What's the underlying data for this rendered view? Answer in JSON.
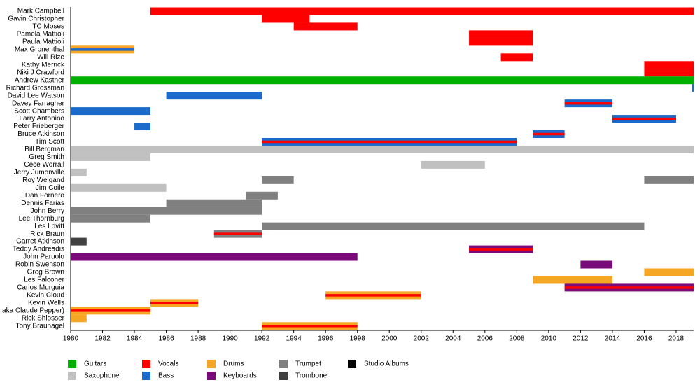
{
  "chart_data": {
    "type": "timeline",
    "xlim": [
      1980,
      2019.1
    ],
    "xticks": [
      1980,
      1982,
      1984,
      1986,
      1988,
      1990,
      1992,
      1994,
      1996,
      1998,
      2000,
      2002,
      2004,
      2006,
      2008,
      2010,
      2012,
      2014,
      2016,
      2018
    ],
    "roles": [
      {
        "name": "Guitars",
        "color": "#00b000"
      },
      {
        "name": "Saxophone",
        "color": "#c0c0c0"
      },
      {
        "name": "Vocals",
        "color": "#ff0000"
      },
      {
        "name": "Bass",
        "color": "#1a6bcc"
      },
      {
        "name": "Drums",
        "color": "#f5a623"
      },
      {
        "name": "Keyboards",
        "color": "#7b0a7b"
      },
      {
        "name": "Trumpet",
        "color": "#808080"
      },
      {
        "name": "Trombone",
        "color": "#404040"
      },
      {
        "name": "Studio Albums",
        "color": "#000000"
      }
    ],
    "members": [
      {
        "name": "Mark Campbell",
        "periods": [
          {
            "start": 1985,
            "end": 2019.1,
            "role": "Vocals"
          }
        ]
      },
      {
        "name": "Gavin Christopher",
        "periods": [
          {
            "start": 1992,
            "end": 1995,
            "role": "Vocals"
          }
        ]
      },
      {
        "name": "TC Moses",
        "periods": [
          {
            "start": 1994,
            "end": 1998,
            "role": "Vocals"
          }
        ]
      },
      {
        "name": "Pamela Mattioli",
        "periods": [
          {
            "start": 2005,
            "end": 2009,
            "role": "Vocals"
          }
        ]
      },
      {
        "name": "Paula Mattioli",
        "periods": [
          {
            "start": 2005,
            "end": 2009,
            "role": "Vocals"
          }
        ]
      },
      {
        "name": "Max Gronenthal",
        "periods": [
          {
            "start": 1980,
            "end": 1984,
            "role": "Drums",
            "with": "Bass"
          }
        ]
      },
      {
        "name": "Will Rize",
        "periods": [
          {
            "start": 2007,
            "end": 2009,
            "role": "Vocals"
          }
        ]
      },
      {
        "name": "Kathy Merrick",
        "periods": [
          {
            "start": 2016,
            "end": 2019.1,
            "role": "Vocals"
          }
        ]
      },
      {
        "name": "Niki J Crawford",
        "periods": [
          {
            "start": 2016,
            "end": 2019.1,
            "role": "Vocals"
          }
        ]
      },
      {
        "name": "Andrew Kastner",
        "periods": [
          {
            "start": 1980,
            "end": 2019.1,
            "role": "Guitars"
          }
        ]
      },
      {
        "name": "Richard Grossman",
        "periods": [
          {
            "start": 2019,
            "end": 2019.1,
            "role": "Bass"
          }
        ]
      },
      {
        "name": "David Lee Watson",
        "periods": [
          {
            "start": 1986,
            "end": 1992,
            "role": "Bass"
          }
        ]
      },
      {
        "name": "Davey Farragher",
        "periods": [
          {
            "start": 2011,
            "end": 2014,
            "role": "Bass",
            "with": "Vocals"
          }
        ]
      },
      {
        "name": "Scott Chambers",
        "periods": [
          {
            "start": 1980,
            "end": 1985,
            "role": "Bass"
          }
        ]
      },
      {
        "name": "Larry Antonino",
        "periods": [
          {
            "start": 2014,
            "end": 2018,
            "role": "Bass",
            "with": "Vocals"
          }
        ]
      },
      {
        "name": "Peter Frieberger",
        "periods": [
          {
            "start": 1984,
            "end": 1985,
            "role": "Bass"
          }
        ]
      },
      {
        "name": "Bruce Atkinson",
        "periods": [
          {
            "start": 2009,
            "end": 2011,
            "role": "Bass",
            "with": "Vocals"
          }
        ]
      },
      {
        "name": "Tim Scott",
        "periods": [
          {
            "start": 1992,
            "end": 2008,
            "role": "Bass",
            "with": "Vocals"
          }
        ]
      },
      {
        "name": "Bill Bergman",
        "periods": [
          {
            "start": 1980,
            "end": 2019.1,
            "role": "Saxophone"
          }
        ]
      },
      {
        "name": "Greg Smith",
        "periods": [
          {
            "start": 1980,
            "end": 1985,
            "role": "Saxophone"
          }
        ]
      },
      {
        "name": "Cece Worrall",
        "periods": [
          {
            "start": 2002,
            "end": 2006,
            "role": "Saxophone"
          }
        ]
      },
      {
        "name": "Jerry Jumonville",
        "periods": [
          {
            "start": 1980,
            "end": 1981,
            "role": "Saxophone"
          }
        ]
      },
      {
        "name": "Roy Weigand",
        "periods": [
          {
            "start": 1992,
            "end": 1994,
            "role": "Trumpet"
          },
          {
            "start": 2016,
            "end": 2019.1,
            "role": "Trumpet"
          }
        ]
      },
      {
        "name": "Jim Coile",
        "periods": [
          {
            "start": 1980,
            "end": 1986,
            "role": "Saxophone"
          }
        ]
      },
      {
        "name": "Dan Fornero",
        "periods": [
          {
            "start": 1991,
            "end": 1993,
            "role": "Trumpet"
          }
        ]
      },
      {
        "name": "Dennis Farias",
        "periods": [
          {
            "start": 1986,
            "end": 1992,
            "role": "Trumpet"
          }
        ]
      },
      {
        "name": "John Berry",
        "periods": [
          {
            "start": 1980,
            "end": 1992,
            "role": "Trumpet"
          }
        ]
      },
      {
        "name": "Lee Thornburg",
        "periods": [
          {
            "start": 1980,
            "end": 1985,
            "role": "Trumpet"
          }
        ]
      },
      {
        "name": "Les Lovitt",
        "periods": [
          {
            "start": 1992,
            "end": 2016,
            "role": "Trumpet"
          }
        ]
      },
      {
        "name": "Rick Braun",
        "periods": [
          {
            "start": 1989,
            "end": 1992,
            "role": "Trumpet",
            "with": "Vocals"
          }
        ]
      },
      {
        "name": "Garret Atkinson",
        "periods": [
          {
            "start": 1980,
            "end": 1981,
            "role": "Trombone"
          }
        ]
      },
      {
        "name": "Teddy Andreadis",
        "periods": [
          {
            "start": 2005,
            "end": 2009,
            "role": "Keyboards",
            "with": "Vocals"
          }
        ]
      },
      {
        "name": "John Paruolo",
        "periods": [
          {
            "start": 1980,
            "end": 1998,
            "role": "Keyboards"
          }
        ]
      },
      {
        "name": "Robin Swenson",
        "periods": [
          {
            "start": 2012,
            "end": 2014,
            "role": "Keyboards"
          }
        ]
      },
      {
        "name": "Greg Brown",
        "periods": [
          {
            "start": 2016,
            "end": 2019.1,
            "role": "Drums"
          }
        ]
      },
      {
        "name": "Les Falconer",
        "periods": [
          {
            "start": 2009,
            "end": 2014,
            "role": "Drums"
          }
        ]
      },
      {
        "name": "Carlos Murguia",
        "periods": [
          {
            "start": 2011,
            "end": 2019.1,
            "role": "Keyboards",
            "with": "Vocals"
          }
        ]
      },
      {
        "name": "Kevin Cloud",
        "periods": [
          {
            "start": 1996,
            "end": 2002,
            "role": "Drums",
            "with": "Vocals"
          }
        ]
      },
      {
        "name": "Kevin Wells",
        "periods": [
          {
            "start": 1985,
            "end": 1988,
            "role": "Drums",
            "with": "Vocals"
          }
        ]
      },
      {
        "name": "aka Claude Pepper)",
        "periods": [
          {
            "start": 1980,
            "end": 1985,
            "role": "Drums",
            "with": "Vocals"
          }
        ]
      },
      {
        "name": "Rick Shlosser",
        "periods": [
          {
            "start": 1980,
            "end": 1981,
            "role": "Drums"
          }
        ]
      },
      {
        "name": "Tony Braunagel",
        "periods": [
          {
            "start": 1992,
            "end": 1998,
            "role": "Drums",
            "with": "Vocals"
          }
        ]
      }
    ]
  }
}
